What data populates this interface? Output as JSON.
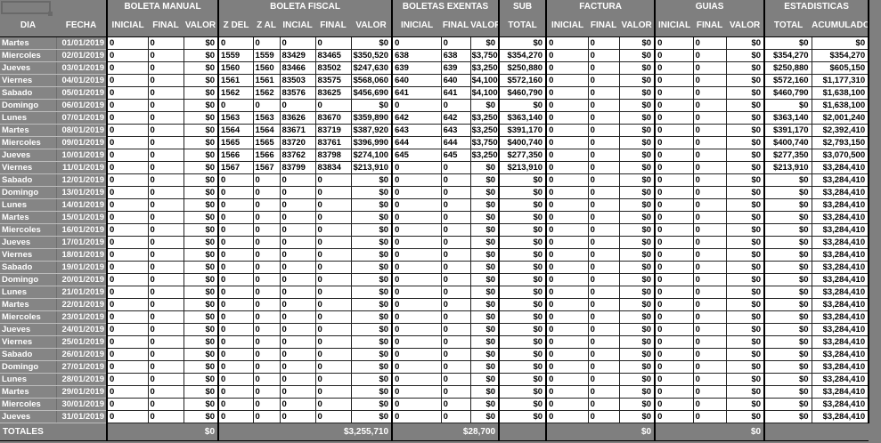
{
  "colors": {
    "background": "#7f7f7f",
    "label_cell": "#858585",
    "cell_background": "#ffffff",
    "grid_line": "#222222",
    "group_border": "#000000",
    "header_text": "#ffffff",
    "data_text": "#000000"
  },
  "groups": [
    {
      "label": "",
      "columns": [
        "DIA",
        "FECHA"
      ]
    },
    {
      "label": "BOLETA MANUAL",
      "columns": [
        "INICIAL",
        "FINAL",
        "VALOR"
      ]
    },
    {
      "label": "BOLETA FISCAL",
      "columns": [
        "Z DEL",
        "Z AL",
        "INCIAL",
        "FINAL",
        "VALOR"
      ]
    },
    {
      "label": "BOLETAS EXENTAS",
      "columns": [
        "INICIAL",
        "FINAL",
        "VALOR"
      ]
    },
    {
      "label": "SUB",
      "columns": [
        "TOTAL"
      ]
    },
    {
      "label": "FACTURA",
      "columns": [
        "INICIAL",
        "FINAL",
        "VALOR"
      ]
    },
    {
      "label": "GUIAS",
      "columns": [
        "INICIAL",
        "FINAL",
        "VALOR"
      ]
    },
    {
      "label": "ESTADISTICAS",
      "columns": [
        "TOTAL",
        "ACUMULADO"
      ]
    }
  ],
  "rows": [
    [
      "Martes",
      "01/01/2019",
      "0",
      "0",
      "$0",
      "0",
      "0",
      "0",
      "0",
      "$0",
      "0",
      "0",
      "$0",
      "$0",
      "0",
      "0",
      "$0",
      "0",
      "0",
      "$0",
      "$0",
      "$0"
    ],
    [
      "Miercoles",
      "02/01/2019",
      "0",
      "0",
      "$0",
      "1559",
      "1559",
      "83429",
      "83465",
      "$350,520",
      "638",
      "638",
      "$3,750",
      "$354,270",
      "0",
      "0",
      "$0",
      "0",
      "0",
      "$0",
      "$354,270",
      "$354,270"
    ],
    [
      "Jueves",
      "03/01/2019",
      "0",
      "0",
      "$0",
      "1560",
      "1560",
      "83466",
      "83502",
      "$247,630",
      "639",
      "639",
      "$3,250",
      "$250,880",
      "0",
      "0",
      "$0",
      "0",
      "0",
      "$0",
      "$250,880",
      "$605,150"
    ],
    [
      "Viernes",
      "04/01/2019",
      "0",
      "0",
      "$0",
      "1561",
      "1561",
      "83503",
      "83575",
      "$568,060",
      "640",
      "640",
      "$4,100",
      "$572,160",
      "0",
      "0",
      "$0",
      "0",
      "0",
      "$0",
      "$572,160",
      "$1,177,310"
    ],
    [
      "Sabado",
      "05/01/2019",
      "0",
      "0",
      "$0",
      "1562",
      "1562",
      "83576",
      "83625",
      "$456,690",
      "641",
      "641",
      "$4,100",
      "$460,790",
      "0",
      "0",
      "$0",
      "0",
      "0",
      "$0",
      "$460,790",
      "$1,638,100"
    ],
    [
      "Domingo",
      "06/01/2019",
      "0",
      "0",
      "$0",
      "0",
      "0",
      "0",
      "0",
      "$0",
      "0",
      "0",
      "$0",
      "$0",
      "0",
      "0",
      "$0",
      "0",
      "0",
      "$0",
      "$0",
      "$1,638,100"
    ],
    [
      "Lunes",
      "07/01/2019",
      "0",
      "0",
      "$0",
      "1563",
      "1563",
      "83626",
      "83670",
      "$359,890",
      "642",
      "642",
      "$3,250",
      "$363,140",
      "0",
      "0",
      "$0",
      "0",
      "0",
      "$0",
      "$363,140",
      "$2,001,240"
    ],
    [
      "Martes",
      "08/01/2019",
      "0",
      "0",
      "$0",
      "1564",
      "1564",
      "83671",
      "83719",
      "$387,920",
      "643",
      "643",
      "$3,250",
      "$391,170",
      "0",
      "0",
      "$0",
      "0",
      "0",
      "$0",
      "$391,170",
      "$2,392,410"
    ],
    [
      "Miercoles",
      "09/01/2019",
      "0",
      "0",
      "$0",
      "1565",
      "1565",
      "83720",
      "83761",
      "$396,990",
      "644",
      "644",
      "$3,750",
      "$400,740",
      "0",
      "0",
      "$0",
      "0",
      "0",
      "$0",
      "$400,740",
      "$2,793,150"
    ],
    [
      "Jueves",
      "10/01/2019",
      "0",
      "0",
      "$0",
      "1566",
      "1566",
      "83762",
      "83798",
      "$274,100",
      "645",
      "645",
      "$3,250",
      "$277,350",
      "0",
      "0",
      "$0",
      "0",
      "0",
      "$0",
      "$277,350",
      "$3,070,500"
    ],
    [
      "Viernes",
      "11/01/2019",
      "0",
      "0",
      "$0",
      "1567",
      "1567",
      "83799",
      "83834",
      "$213,910",
      "0",
      "0",
      "$0",
      "$213,910",
      "0",
      "0",
      "$0",
      "0",
      "0",
      "$0",
      "$213,910",
      "$3,284,410"
    ],
    [
      "Sabado",
      "12/01/2019",
      "0",
      "0",
      "$0",
      "0",
      "0",
      "0",
      "0",
      "$0",
      "0",
      "0",
      "$0",
      "$0",
      "0",
      "0",
      "$0",
      "0",
      "0",
      "$0",
      "$0",
      "$3,284,410"
    ],
    [
      "Domingo",
      "13/01/2019",
      "0",
      "0",
      "$0",
      "0",
      "0",
      "0",
      "0",
      "$0",
      "0",
      "0",
      "$0",
      "$0",
      "0",
      "0",
      "$0",
      "0",
      "0",
      "$0",
      "$0",
      "$3,284,410"
    ],
    [
      "Lunes",
      "14/01/2019",
      "0",
      "0",
      "$0",
      "0",
      "0",
      "0",
      "0",
      "$0",
      "0",
      "0",
      "$0",
      "$0",
      "0",
      "0",
      "$0",
      "0",
      "0",
      "$0",
      "$0",
      "$3,284,410"
    ],
    [
      "Martes",
      "15/01/2019",
      "0",
      "0",
      "$0",
      "0",
      "0",
      "0",
      "0",
      "$0",
      "0",
      "0",
      "$0",
      "$0",
      "0",
      "0",
      "$0",
      "0",
      "0",
      "$0",
      "$0",
      "$3,284,410"
    ],
    [
      "Miercoles",
      "16/01/2019",
      "0",
      "0",
      "$0",
      "0",
      "0",
      "0",
      "0",
      "$0",
      "0",
      "0",
      "$0",
      "$0",
      "0",
      "0",
      "$0",
      "0",
      "0",
      "$0",
      "$0",
      "$3,284,410"
    ],
    [
      "Jueves",
      "17/01/2019",
      "0",
      "0",
      "$0",
      "0",
      "0",
      "0",
      "0",
      "$0",
      "0",
      "0",
      "$0",
      "$0",
      "0",
      "0",
      "$0",
      "0",
      "0",
      "$0",
      "$0",
      "$3,284,410"
    ],
    [
      "Viernes",
      "18/01/2019",
      "0",
      "0",
      "$0",
      "0",
      "0",
      "0",
      "0",
      "$0",
      "0",
      "0",
      "$0",
      "$0",
      "0",
      "0",
      "$0",
      "0",
      "0",
      "$0",
      "$0",
      "$3,284,410"
    ],
    [
      "Sabado",
      "19/01/2019",
      "0",
      "0",
      "$0",
      "0",
      "0",
      "0",
      "0",
      "$0",
      "0",
      "0",
      "$0",
      "$0",
      "0",
      "0",
      "$0",
      "0",
      "0",
      "$0",
      "$0",
      "$3,284,410"
    ],
    [
      "Domingo",
      "20/01/2019",
      "0",
      "0",
      "$0",
      "0",
      "0",
      "0",
      "0",
      "$0",
      "0",
      "0",
      "$0",
      "$0",
      "0",
      "0",
      "$0",
      "0",
      "0",
      "$0",
      "$0",
      "$3,284,410"
    ],
    [
      "Lunes",
      "21/01/2019",
      "0",
      "0",
      "$0",
      "0",
      "0",
      "0",
      "0",
      "$0",
      "0",
      "0",
      "$0",
      "$0",
      "0",
      "0",
      "$0",
      "0",
      "0",
      "$0",
      "$0",
      "$3,284,410"
    ],
    [
      "Martes",
      "22/01/2019",
      "0",
      "0",
      "$0",
      "0",
      "0",
      "0",
      "0",
      "$0",
      "0",
      "0",
      "$0",
      "$0",
      "0",
      "0",
      "$0",
      "0",
      "0",
      "$0",
      "$0",
      "$3,284,410"
    ],
    [
      "Miercoles",
      "23/01/2019",
      "0",
      "0",
      "$0",
      "0",
      "0",
      "0",
      "0",
      "$0",
      "0",
      "0",
      "$0",
      "$0",
      "0",
      "0",
      "$0",
      "0",
      "0",
      "$0",
      "$0",
      "$3,284,410"
    ],
    [
      "Jueves",
      "24/01/2019",
      "0",
      "0",
      "$0",
      "0",
      "0",
      "0",
      "0",
      "$0",
      "0",
      "0",
      "$0",
      "$0",
      "0",
      "0",
      "$0",
      "0",
      "0",
      "$0",
      "$0",
      "$3,284,410"
    ],
    [
      "Viernes",
      "25/01/2019",
      "0",
      "0",
      "$0",
      "0",
      "0",
      "0",
      "0",
      "$0",
      "0",
      "0",
      "$0",
      "$0",
      "0",
      "0",
      "$0",
      "0",
      "0",
      "$0",
      "$0",
      "$3,284,410"
    ],
    [
      "Sabado",
      "26/01/2019",
      "0",
      "0",
      "$0",
      "0",
      "0",
      "0",
      "0",
      "$0",
      "0",
      "0",
      "$0",
      "$0",
      "0",
      "0",
      "$0",
      "0",
      "0",
      "$0",
      "$0",
      "$3,284,410"
    ],
    [
      "Domingo",
      "27/01/2019",
      "0",
      "0",
      "$0",
      "0",
      "0",
      "0",
      "0",
      "$0",
      "0",
      "0",
      "$0",
      "$0",
      "0",
      "0",
      "$0",
      "0",
      "0",
      "$0",
      "$0",
      "$3,284,410"
    ],
    [
      "Lunes",
      "28/01/2019",
      "0",
      "0",
      "$0",
      "0",
      "0",
      "0",
      "0",
      "$0",
      "0",
      "0",
      "$0",
      "$0",
      "0",
      "0",
      "$0",
      "0",
      "0",
      "$0",
      "$0",
      "$3,284,410"
    ],
    [
      "Martes",
      "29/01/2019",
      "0",
      "0",
      "$0",
      "0",
      "0",
      "0",
      "0",
      "$0",
      "0",
      "0",
      "$0",
      "$0",
      "0",
      "0",
      "$0",
      "0",
      "0",
      "$0",
      "$0",
      "$3,284,410"
    ],
    [
      "Miercoles",
      "30/01/2019",
      "0",
      "0",
      "$0",
      "0",
      "0",
      "0",
      "0",
      "$0",
      "0",
      "0",
      "$0",
      "$0",
      "0",
      "0",
      "$0",
      "0",
      "0",
      "$0",
      "$0",
      "$3,284,410"
    ],
    [
      "Jueves",
      "31/01/2019",
      "0",
      "0",
      "$0",
      "0",
      "0",
      "0",
      "0",
      "$0",
      "0",
      "0",
      "$0",
      "$0",
      "0",
      "0",
      "$0",
      "0",
      "0",
      "$0",
      "$0",
      "$3,284,410"
    ]
  ],
  "totals": {
    "label": "TOTALES",
    "boleta_manual": "$0",
    "boleta_fiscal": "$3,255,710",
    "boletas_exentas": "$28,700",
    "sub_total": "",
    "factura": "$0",
    "guias": "$0",
    "estadisticas": ""
  }
}
